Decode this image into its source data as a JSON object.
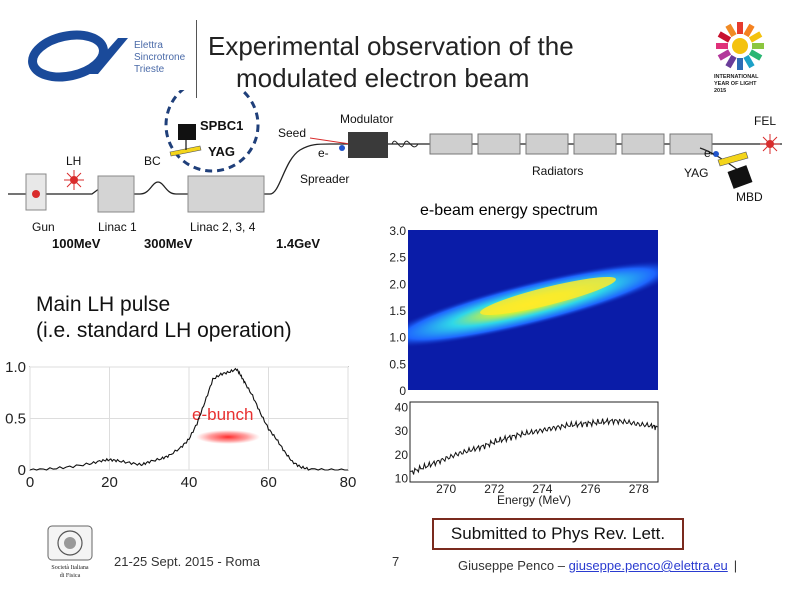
{
  "slide": {
    "title_line1": "Experimental observation of the",
    "title_line2": "modulated electron beam"
  },
  "logo": {
    "line1": "Elettra",
    "line2": "Sincrotrone",
    "line3": "Trieste"
  },
  "iyl_logo": {
    "line1": "INTERNATIONAL",
    "line2": "YEAR OF LIGHT",
    "line3": "2015"
  },
  "beamline": {
    "spbc1": "SPBC1",
    "yag_left": "YAG",
    "lh": "LH",
    "bc": "BC",
    "seed": "Seed",
    "e_minus_left": "e-",
    "spreader": "Spreader",
    "modulator": "Modulator",
    "radiators": "Radiators",
    "fel": "FEL",
    "e_minus_right": "e-",
    "yag_right": "YAG",
    "mbd": "MBD",
    "gun": "Gun",
    "linac1": "Linac 1",
    "linac234": "Linac 2, 3, 4",
    "energy1": "100MeV",
    "energy2": "300MeV",
    "energy3": "1.4GeV"
  },
  "spectrum_title": "e-beam energy spectrum",
  "main_lh_line1": "Main LH pulse",
  "main_lh_line2": "(i.e. standard LH operation)",
  "submitted": "Submitted to Phys Rev. Lett.",
  "footer": {
    "date": "21-25 Sept. 2015 - Roma",
    "page": "7",
    "author": "Giuseppe Penco – ",
    "email": "giuseppe.penco@elettra.eu",
    "bar": "|",
    "society_line1": "Società Italiana",
    "society_line2": "di Fisica"
  },
  "chart_data": [
    {
      "type": "line",
      "name": "laser-heater-pulse-profile",
      "annotation": "e-bunch",
      "x_ticks": [
        0,
        20,
        40,
        60,
        80
      ],
      "y_ticks": [
        0,
        0.5,
        1.0
      ],
      "y_tick_labels": [
        "0",
        "0.5",
        "1.0"
      ],
      "xlim": [
        0,
        80
      ],
      "ylim": [
        0,
        1.0
      ],
      "x": [
        0,
        5,
        10,
        15,
        18,
        20,
        22,
        25,
        28,
        30,
        33,
        35,
        38,
        40,
        42,
        44,
        46,
        48,
        50,
        52,
        53,
        54,
        56,
        58,
        60,
        62,
        64,
        66,
        68,
        70,
        75,
        80
      ],
      "y": [
        0.0,
        0.01,
        0.03,
        0.06,
        0.09,
        0.1,
        0.09,
        0.07,
        0.05,
        0.08,
        0.11,
        0.14,
        0.22,
        0.3,
        0.45,
        0.66,
        0.88,
        0.93,
        0.95,
        0.98,
        0.92,
        0.85,
        0.72,
        0.55,
        0.4,
        0.3,
        0.18,
        0.08,
        0.03,
        0.01,
        0.0,
        0.0
      ]
    },
    {
      "type": "heatmap",
      "name": "energy-spectrum-image",
      "y_ticks": [
        0,
        0.5,
        1.0,
        1.5,
        2.0,
        2.5,
        3.0
      ],
      "y_tick_labels": [
        "0",
        "0.5",
        "1.0",
        "1.5",
        "2.0",
        "2.5",
        "3.0"
      ],
      "ylim": [
        0,
        3.0
      ]
    },
    {
      "type": "line",
      "name": "energy-projection",
      "x_ticks": [
        270,
        272,
        274,
        276,
        278
      ],
      "y_ticks": [
        10,
        20,
        30,
        40
      ],
      "xlim": [
        268.5,
        278.8
      ],
      "ylim": [
        8,
        42
      ],
      "xlabel": "Energy (MeV)",
      "x": [
        268.5,
        269,
        269.5,
        270,
        270.5,
        271,
        271.5,
        272,
        272.5,
        273,
        273.5,
        274,
        274.5,
        275,
        275.5,
        276,
        276.5,
        277,
        277.5,
        278,
        278.5,
        278.8
      ],
      "y": [
        12,
        14,
        16,
        18,
        20,
        21.5,
        23,
        25,
        26.5,
        28,
        29,
        30,
        31,
        32,
        32.5,
        33,
        33.5,
        34,
        33.5,
        32.5,
        32,
        31
      ]
    }
  ]
}
